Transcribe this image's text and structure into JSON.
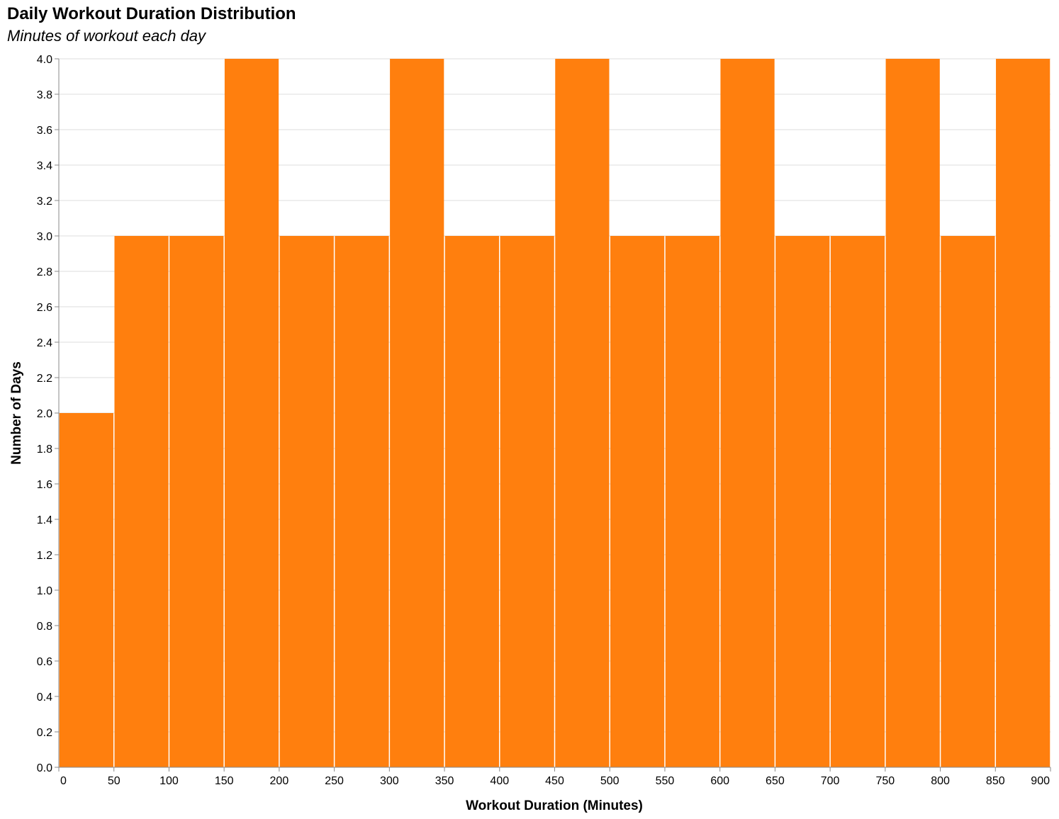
{
  "title": "Daily Workout Duration Distribution",
  "subtitle": "Minutes of workout each day",
  "chart_data": {
    "type": "bar",
    "subtype": "histogram",
    "bin_width": 50,
    "bins": [
      {
        "start": 0,
        "end": 50,
        "count": 2
      },
      {
        "start": 50,
        "end": 100,
        "count": 3
      },
      {
        "start": 100,
        "end": 150,
        "count": 3
      },
      {
        "start": 150,
        "end": 200,
        "count": 4
      },
      {
        "start": 200,
        "end": 250,
        "count": 3
      },
      {
        "start": 250,
        "end": 300,
        "count": 3
      },
      {
        "start": 300,
        "end": 350,
        "count": 4
      },
      {
        "start": 350,
        "end": 400,
        "count": 3
      },
      {
        "start": 400,
        "end": 450,
        "count": 3
      },
      {
        "start": 450,
        "end": 500,
        "count": 4
      },
      {
        "start": 500,
        "end": 550,
        "count": 3
      },
      {
        "start": 550,
        "end": 600,
        "count": 3
      },
      {
        "start": 600,
        "end": 650,
        "count": 4
      },
      {
        "start": 650,
        "end": 700,
        "count": 3
      },
      {
        "start": 700,
        "end": 750,
        "count": 3
      },
      {
        "start": 750,
        "end": 800,
        "count": 4
      },
      {
        "start": 800,
        "end": 850,
        "count": 3
      },
      {
        "start": 850,
        "end": 900,
        "count": 4
      }
    ],
    "xlabel": "Workout Duration (Minutes)",
    "ylabel": "Number of Days",
    "xlim": [
      0,
      900
    ],
    "ylim": [
      0,
      4
    ],
    "x_ticks": [
      "0",
      "50",
      "100",
      "150",
      "200",
      "250",
      "300",
      "350",
      "400",
      "450",
      "500",
      "550",
      "600",
      "650",
      "700",
      "750",
      "800",
      "850",
      "900"
    ],
    "y_ticks": [
      "0.0",
      "0.2",
      "0.4",
      "0.6",
      "0.8",
      "1.0",
      "1.2",
      "1.4",
      "1.6",
      "1.8",
      "2.0",
      "2.2",
      "2.4",
      "2.6",
      "2.8",
      "3.0",
      "3.2",
      "3.4",
      "3.6",
      "3.8",
      "4.0"
    ],
    "bar_color": "#ff7f0e",
    "grid": true
  }
}
